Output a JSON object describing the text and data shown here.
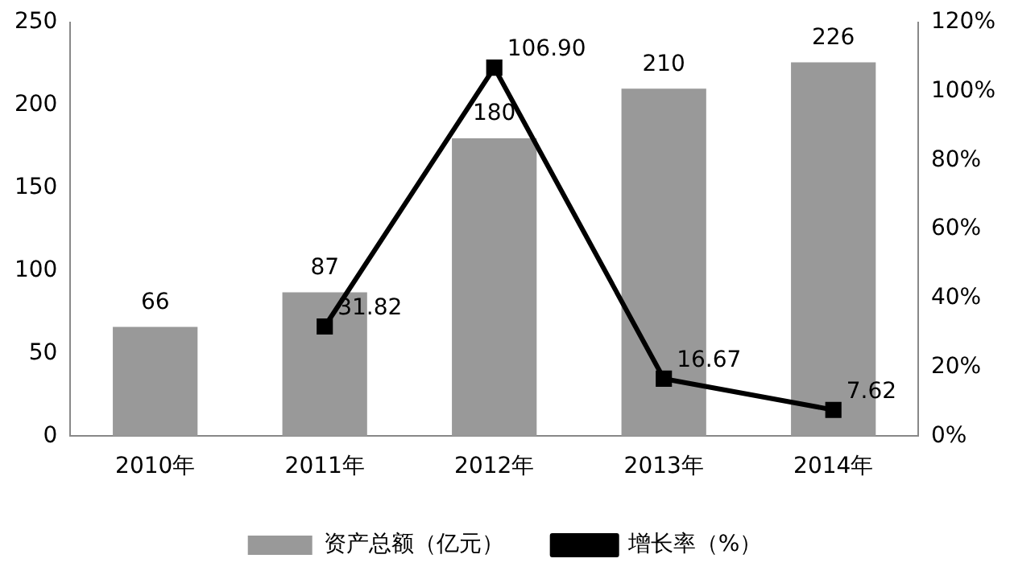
{
  "chart_data": {
    "type": "bar",
    "categories": [
      "2010年",
      "2011年",
      "2012年",
      "2013年",
      "2014年"
    ],
    "series": [
      {
        "name": "资产总额（亿元）",
        "color": "#999999",
        "values": [
          66,
          87,
          180,
          210,
          226
        ],
        "value_labels": [
          "66",
          "87",
          "180",
          "210",
          "226"
        ]
      },
      {
        "name": "增长率（%）",
        "type": "line",
        "axis": "y2",
        "color": "#000000",
        "values": [
          null,
          31.82,
          106.9,
          16.67,
          7.62
        ],
        "value_labels": [
          null,
          "31.82",
          "106.90",
          "16.67",
          "7.62"
        ]
      }
    ],
    "ylim": [
      0,
      250
    ],
    "yticks": [
      0,
      50,
      100,
      150,
      200,
      250
    ],
    "y2lim": [
      0,
      120
    ],
    "y2ticks": [
      {
        "value": 0,
        "label": "0%"
      },
      {
        "value": 20,
        "label": "20%"
      },
      {
        "value": 40,
        "label": "40%"
      },
      {
        "value": 60,
        "label": "60%"
      },
      {
        "value": 80,
        "label": "80%"
      },
      {
        "value": 100,
        "label": "100%"
      },
      {
        "value": 120,
        "label": "120%"
      }
    ],
    "grid": false,
    "legend": "bottom",
    "marker": "square",
    "line_style": "solid"
  }
}
